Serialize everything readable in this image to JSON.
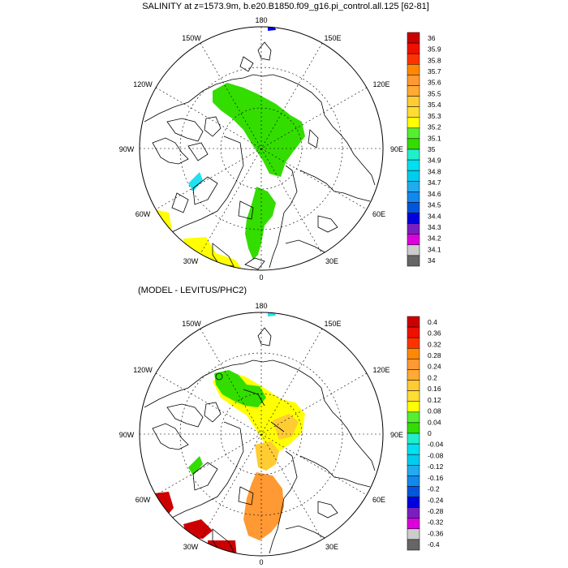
{
  "main_title": "SALINITY at z=1573.9m, b.e20.B1850.f09_g16.pi_control.all.125 [62-81]",
  "sub_title": "(MODEL - LEVITUS/PHC2)",
  "longitude_labels": {
    "top": "180",
    "top_left": "150W",
    "top_right": "150E",
    "upper_left": "120W",
    "upper_right": "120E",
    "left": "90W",
    "right": "90E",
    "lower_left": "60W",
    "lower_right": "60E",
    "bottom_left": "30W",
    "bottom_right": "30E",
    "bottom": "0"
  },
  "colors": {
    "salinity_scale": [
      "#666666",
      "#cccccc",
      "#dd00dd",
      "#7a1fbf",
      "#0000dd",
      "#0055dd",
      "#1188ee",
      "#22aaee",
      "#00ccee",
      "#00e0f0",
      "#22eecc",
      "#33dd00",
      "#55ee33",
      "#ffff00",
      "#ffdd33",
      "#ffcc33",
      "#ffaa33",
      "#ff9933",
      "#ff8800",
      "#ff3300",
      "#ee1100",
      "#cc0000"
    ],
    "anomaly_scale": [
      "#666666",
      "#cccccc",
      "#dd00dd",
      "#7a1fbf",
      "#0000dd",
      "#0055dd",
      "#1188ee",
      "#22aaee",
      "#00ccee",
      "#00e0f0",
      "#22eecc",
      "#33dd00",
      "#55ee33",
      "#ffff00",
      "#ffdd33",
      "#ffcc33",
      "#ffaa33",
      "#ff9933",
      "#ff8800",
      "#ff3300",
      "#ee1100",
      "#cc0000"
    ]
  },
  "legend_salinity": [
    "36",
    "35.9",
    "35.8",
    "35.7",
    "35.6",
    "35.5",
    "35.4",
    "35.3",
    "35.2",
    "35.1",
    "35",
    "34.9",
    "34.8",
    "34.7",
    "34.6",
    "34.5",
    "34.4",
    "34.3",
    "34.2",
    "34.1",
    "34"
  ],
  "legend_anomaly": [
    "0.4",
    "0.36",
    "0.32",
    "0.28",
    "0.24",
    "0.2",
    "0.16",
    "0.12",
    "0.08",
    "0.04",
    "0",
    "-0.04",
    "-0.08",
    "-0.12",
    "-0.16",
    "-0.2",
    "-0.24",
    "-0.28",
    "-0.32",
    "-0.36",
    "-0.4"
  ]
}
